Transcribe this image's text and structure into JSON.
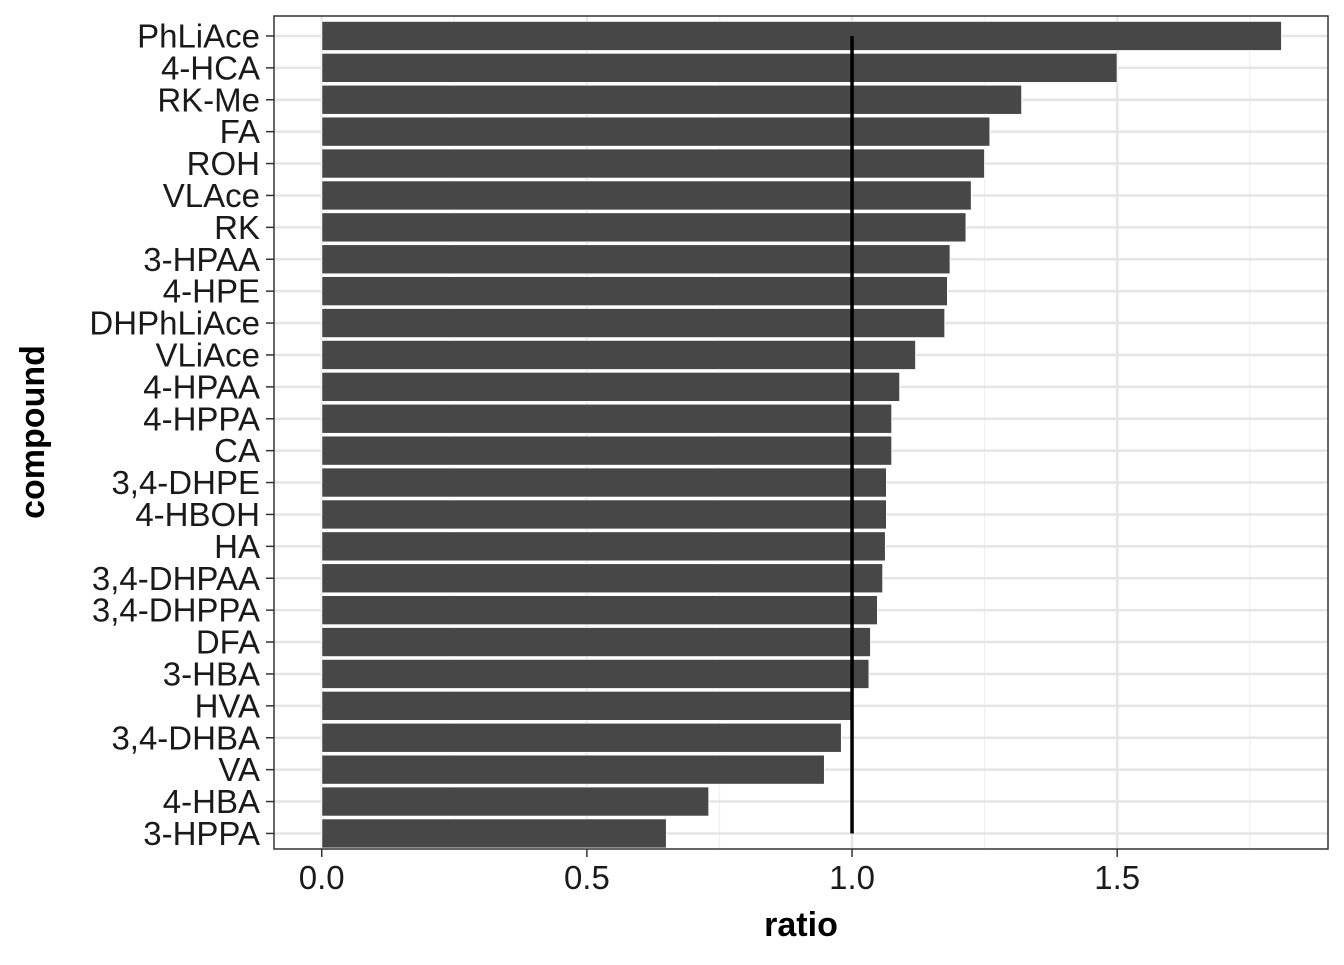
{
  "chart_data": {
    "type": "bar",
    "orientation": "horizontal",
    "xlabel": "ratio",
    "ylabel": "compound",
    "xlim": [
      -0.09,
      1.8975
    ],
    "x_ticks": [
      0.0,
      0.5,
      1.0,
      1.5
    ],
    "x_tick_labels": [
      "0.0",
      "0.5",
      "1.0",
      "1.5"
    ],
    "x_minor_ticks": [
      0.25,
      0.75,
      1.25,
      1.75
    ],
    "reference_line": 1.0,
    "grid": true,
    "theme": "bw",
    "categories": [
      "PhLiAce",
      "4-HCA",
      "RK-Me",
      "FA",
      "ROH",
      "VLAce",
      "RK",
      "3-HPAA",
      "4-HPE",
      "DHPhLiAce",
      "VLiAce",
      "4-HPAA",
      "4-HPPA",
      "CA",
      "3,4-DHPE",
      "4-HBOH",
      "HA",
      "3,4-DHPAA",
      "3,4-DHPPA",
      "DFA",
      "3-HBA",
      "HVA",
      "3,4-DHBA",
      "VA",
      "4-HBA",
      "3-HPPA"
    ],
    "values": [
      1.81,
      1.5,
      1.32,
      1.26,
      1.25,
      1.225,
      1.215,
      1.185,
      1.18,
      1.175,
      1.12,
      1.09,
      1.075,
      1.075,
      1.065,
      1.065,
      1.063,
      1.058,
      1.048,
      1.035,
      1.032,
      0.998,
      0.98,
      0.948,
      0.73,
      0.65
    ],
    "colors": {
      "bar": "#474747",
      "bar_outline": "#ffffff",
      "reference_line": "#000000",
      "grid_major": "#e5e5e5",
      "grid_minor": "#f2f2f2",
      "panel_border": "#333333",
      "background": "#ffffff"
    }
  }
}
